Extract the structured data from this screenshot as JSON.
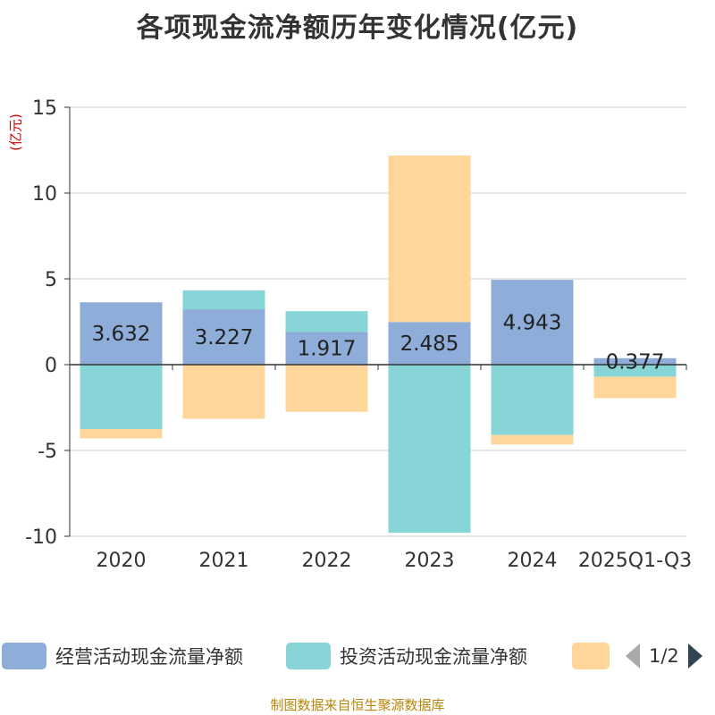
{
  "chart_data": {
    "type": "bar",
    "stacked": true,
    "title": "各项现金流净额历年变化情况(亿元)",
    "ylabel": "(亿元)",
    "ylim": [
      -10,
      15
    ],
    "yticks": [
      15,
      10,
      5,
      0,
      -5,
      -10
    ],
    "categories": [
      "2020",
      "2021",
      "2022",
      "2023",
      "2024",
      "2025Q1-Q3"
    ],
    "series": [
      {
        "name": "经营活动现金流量净额",
        "color": "#8eadd8",
        "values": [
          3.632,
          3.227,
          1.917,
          2.485,
          4.943,
          0.377
        ],
        "show_labels": true
      },
      {
        "name": "投资活动现金流量净额",
        "color": "#88d5d7",
        "values": [
          -3.75,
          1.1,
          1.2,
          -9.8,
          -4.1,
          -0.7
        ]
      },
      {
        "name": "",
        "color": "#ffd699",
        "values": [
          -0.55,
          -3.15,
          -2.75,
          9.7,
          -0.55,
          -1.25
        ]
      }
    ],
    "grid": true,
    "legend_position": "bottom"
  },
  "legend": {
    "page_indicator": "1/2"
  },
  "source": "制图数据来自恒生聚源数据库"
}
